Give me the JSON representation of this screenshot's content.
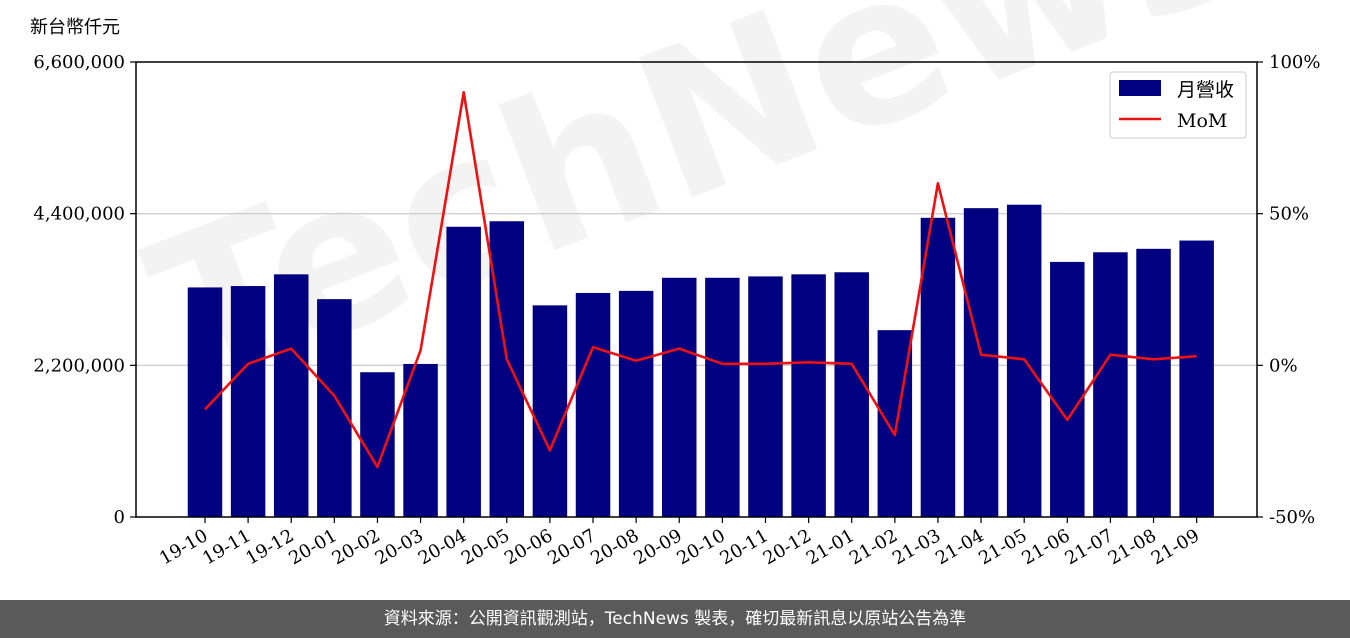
{
  "chart_data": {
    "type": "bar+line",
    "unit_label": "新台幣仟元",
    "categories": [
      "19-10",
      "19-11",
      "19-12",
      "20-01",
      "20-02",
      "20-03",
      "20-04",
      "20-05",
      "20-06",
      "20-07",
      "20-08",
      "20-09",
      "20-10",
      "20-11",
      "20-12",
      "21-01",
      "21-02",
      "21-03",
      "21-04",
      "21-05",
      "21-06",
      "21-07",
      "21-08",
      "21-09"
    ],
    "series": [
      {
        "name": "月營收",
        "kind": "bar",
        "axis": "left",
        "color": "#000080",
        "values": [
          3330000,
          3350000,
          3520000,
          3160000,
          2100000,
          2220000,
          4210000,
          4290000,
          3070000,
          3250000,
          3280000,
          3470000,
          3470000,
          3490000,
          3520000,
          3550000,
          2710000,
          4340000,
          4480000,
          4530000,
          3700000,
          3840000,
          3890000,
          4010000
        ]
      },
      {
        "name": "MoM",
        "kind": "line",
        "axis": "right",
        "color": "#ee1111",
        "values": [
          -14.5,
          0.5,
          5.5,
          -10.0,
          -33.5,
          5.0,
          90.0,
          2.0,
          -28.0,
          6.0,
          1.5,
          5.5,
          0.5,
          0.5,
          1.0,
          0.5,
          -23.0,
          60.0,
          3.5,
          2.0,
          -18.0,
          3.5,
          2.0,
          3.0
        ]
      }
    ],
    "ylim_left": [
      0,
      6600000
    ],
    "yticks_left": [
      "0",
      "2,200,000",
      "4,400,000",
      "6,600,000"
    ],
    "ylim_right": [
      -50,
      100
    ],
    "yticks_right": [
      "-50%",
      "0%",
      "50%",
      "100%"
    ],
    "grid": "horizontal",
    "legend_position": "top-right",
    "watermark": "TechNews"
  },
  "footer": {
    "source_text": "資料來源：公開資訊觀測站，TechNews 製表，確切最新訊息以原站公告為準"
  }
}
